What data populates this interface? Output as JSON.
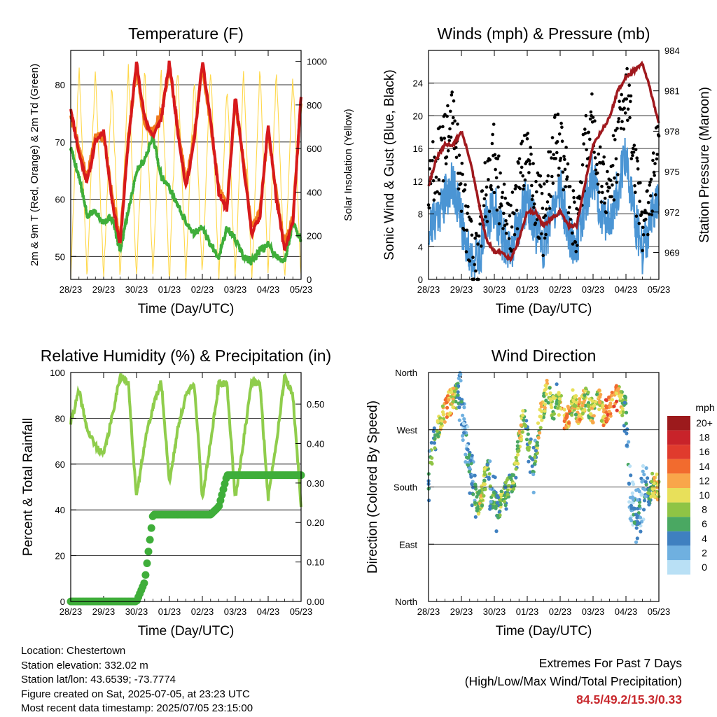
{
  "colors": {
    "temp_2m": "#d7191c",
    "temp_9m": "#f07b1e",
    "dewpoint": "#3fae3a",
    "solar": "#ffd84a",
    "wind": "#4b95d4",
    "gust": "#000000",
    "pressure": "#a0191e",
    "humidity": "#8fcd4c",
    "precip": "#3fae3a",
    "extremes": "#c8282d"
  },
  "x_ticks": [
    "28/23",
    "29/23",
    "30/23",
    "01/23",
    "02/23",
    "03/23",
    "04/23",
    "05/23"
  ],
  "chart_data": [
    {
      "type": "line",
      "title": "Temperature (F)",
      "xlabel": "Time (Day/UTC)",
      "ylabel": "2m & 9m T (Red, Orange) & 2m Td (Green)",
      "ylabel_right": "Solar Insolation (Yellow)",
      "ylim": [
        46,
        86
      ],
      "yticks": [
        50,
        60,
        70,
        80
      ],
      "ylim_right": [
        0,
        1050
      ],
      "yticks_right": [
        0,
        200,
        400,
        600,
        800,
        1000
      ],
      "x": [
        0,
        0.25,
        0.5,
        0.75,
        1,
        1.25,
        1.5,
        1.75,
        2,
        2.25,
        2.5,
        2.75,
        3,
        3.25,
        3.5,
        3.75,
        4,
        4.25,
        4.5,
        4.75,
        5,
        5.25,
        5.5,
        5.75,
        6,
        6.25,
        6.5,
        6.75,
        7
      ],
      "series": [
        {
          "values": [
            76,
            68,
            63,
            70,
            72,
            60,
            52,
            70,
            84,
            74,
            71,
            74,
            84,
            72,
            62,
            70,
            84,
            74,
            61,
            58,
            78,
            66,
            54,
            57,
            73,
            60,
            51,
            56,
            78
          ]
        },
        {
          "values": [
            75,
            69,
            64,
            71,
            71,
            61,
            53,
            71,
            83,
            73,
            72,
            75,
            83,
            73,
            63,
            71,
            83,
            73,
            62,
            59,
            77,
            67,
            55,
            58,
            72,
            61,
            52,
            57,
            77
          ]
        },
        {
          "values": [
            69,
            64,
            57,
            58,
            56,
            57,
            51,
            58,
            65,
            67,
            71,
            64,
            62,
            59,
            56,
            54,
            55,
            52,
            50,
            55,
            53,
            50,
            49,
            51,
            52,
            50,
            49,
            56,
            53
          ]
        },
        {
          "values": [
            0,
            980,
            0,
            980,
            0,
            900,
            0,
            980,
            0,
            960,
            0,
            980,
            0,
            990,
            0,
            940,
            0,
            980,
            0,
            900,
            0,
            960,
            0,
            990,
            0,
            970,
            0,
            950,
            0
          ]
        }
      ]
    },
    {
      "type": "line",
      "title": "Winds (mph) & Pressure (mb)",
      "xlabel": "Time (Day/UTC)",
      "ylabel": "Sonic Wind & Gust (Blue, Black)",
      "ylabel_right": "Station Pressure (Maroon)",
      "ylim": [
        0,
        28
      ],
      "yticks": [
        0,
        4,
        8,
        12,
        16,
        20,
        24
      ],
      "ylim_right": [
        967,
        984
      ],
      "yticks_right": [
        969,
        972,
        975,
        978,
        981,
        984
      ],
      "x": [
        0,
        0.25,
        0.5,
        0.75,
        1,
        1.25,
        1.5,
        1.75,
        2,
        2.25,
        2.5,
        2.75,
        3,
        3.25,
        3.5,
        3.75,
        4,
        4.25,
        4.5,
        4.75,
        5,
        5.25,
        5.5,
        5.75,
        6,
        6.25,
        6.5,
        6.75,
        7
      ],
      "series": [
        {
          "values": [
            6,
            8,
            10,
            12,
            7,
            3,
            2,
            7,
            9,
            5,
            3,
            7,
            10,
            6,
            4,
            8,
            11,
            6,
            4,
            9,
            13,
            8,
            7,
            11,
            15,
            8,
            3,
            7,
            10
          ]
        },
        {
          "values": [
            12,
            14,
            16,
            19,
            12,
            5,
            3,
            11,
            15,
            8,
            5,
            12,
            17,
            10,
            7,
            14,
            18,
            10,
            7,
            15,
            20,
            13,
            11,
            16,
            24,
            14,
            5,
            11,
            16
          ]
        },
        {
          "values": [
            974,
            976,
            977,
            977,
            978,
            976,
            973,
            970,
            969,
            969,
            968.5,
            970,
            972,
            972,
            971,
            971.5,
            972,
            971,
            971,
            974,
            977,
            978,
            979,
            981,
            982,
            982.5,
            983,
            981,
            978.5
          ]
        }
      ]
    },
    {
      "type": "line",
      "title": "Relative Humidity (%) & Precipitation (in)",
      "xlabel": "Time (Day/UTC)",
      "ylabel": "Percent & Total Rainfall",
      "ylim": [
        0,
        100
      ],
      "yticks": [
        0,
        20,
        40,
        60,
        80,
        100
      ],
      "ylim_right": [
        0,
        0.58
      ],
      "yticks_right": [
        "0.00",
        "0.10",
        "0.20",
        "0.30",
        "0.40",
        "0.50"
      ],
      "x": [
        0,
        0.25,
        0.5,
        0.75,
        1,
        1.25,
        1.5,
        1.75,
        2,
        2.25,
        2.5,
        2.75,
        3,
        3.25,
        3.5,
        3.75,
        4,
        4.25,
        4.5,
        4.75,
        5,
        5.25,
        5.5,
        5.75,
        6,
        6.25,
        6.5,
        6.75,
        7
      ],
      "series": [
        {
          "values": [
            78,
            92,
            75,
            68,
            64,
            80,
            99,
            95,
            45,
            70,
            85,
            96,
            52,
            75,
            90,
            96,
            45,
            70,
            95,
            95,
            45,
            70,
            96,
            95,
            45,
            70,
            98,
            90,
            42
          ]
        },
        {
          "values": [
            0,
            0,
            0,
            0,
            0,
            0,
            0,
            0,
            0,
            0.05,
            0.22,
            0.22,
            0.22,
            0.22,
            0.22,
            0.22,
            0.22,
            0.22,
            0.24,
            0.32,
            0.32,
            0.32,
            0.32,
            0.32,
            0.32,
            0.32,
            0.32,
            0.32,
            0.32
          ]
        }
      ]
    },
    {
      "type": "scatter",
      "title": "Wind Direction",
      "xlabel": "Time (Day/UTC)",
      "ylabel": "Direction (Colored By Speed)",
      "yticks": [
        "North",
        "East",
        "South",
        "West",
        "North"
      ],
      "ylim": [
        0,
        360
      ],
      "legend_title": "mph",
      "legend": [
        "20+",
        "18",
        "16",
        "14",
        "12",
        "10",
        "8",
        "6",
        "4",
        "2",
        "0"
      ],
      "legend_colors": [
        "#9c1a1c",
        "#c8232a",
        "#e03b2d",
        "#f26b2e",
        "#f9a64a",
        "#e8e05a",
        "#8fc445",
        "#4aa862",
        "#3f80c0",
        "#6fb0e0",
        "#b9e0f5"
      ],
      "x": [
        0,
        0.1,
        0.2,
        0.3,
        0.4,
        0.5,
        0.6,
        0.7,
        0.8,
        0.9,
        1,
        1.1,
        1.2,
        1.3,
        1.4,
        1.5,
        1.6,
        1.7,
        1.8,
        1.9,
        2,
        2.1,
        2.2,
        2.3,
        2.4,
        2.5,
        2.6,
        2.7,
        2.8,
        2.9,
        3,
        3.1,
        3.2,
        3.3,
        3.4,
        3.5,
        3.6,
        3.7,
        3.8,
        3.9,
        4,
        4.1,
        4.2,
        4.3,
        4.4,
        4.5,
        4.6,
        4.7,
        4.8,
        4.9,
        5,
        5.1,
        5.2,
        5.3,
        5.4,
        5.5,
        5.6,
        5.7,
        5.8,
        5.9,
        6,
        6.1,
        6.2,
        6.3,
        6.4,
        6.5,
        6.6,
        6.7,
        6.8,
        6.9,
        7
      ],
      "direction": [
        180,
        230,
        260,
        275,
        295,
        300,
        310,
        315,
        320,
        325,
        310,
        270,
        230,
        200,
        170,
        150,
        160,
        190,
        210,
        170,
        160,
        150,
        155,
        165,
        175,
        185,
        195,
        230,
        270,
        290,
        260,
        230,
        200,
        250,
        290,
        310,
        330,
        320,
        300,
        310,
        310,
        290,
        280,
        300,
        320,
        300,
        300,
        310,
        320,
        300,
        300,
        310,
        320,
        290,
        300,
        310,
        310,
        320,
        320,
        310,
        300,
        180,
        150,
        130,
        140,
        170,
        180,
        170,
        190,
        180,
        180
      ],
      "speed": [
        4,
        6,
        6,
        8,
        10,
        12,
        12,
        10,
        8,
        4,
        4,
        2,
        4,
        4,
        4,
        8,
        10,
        8,
        6,
        4,
        6,
        6,
        8,
        6,
        6,
        8,
        6,
        8,
        10,
        8,
        6,
        6,
        4,
        8,
        10,
        8,
        10,
        8,
        8,
        6,
        10,
        12,
        12,
        10,
        8,
        10,
        12,
        10,
        8,
        8,
        10,
        8,
        10,
        12,
        14,
        14,
        12,
        14,
        10,
        8,
        4,
        2,
        2,
        4,
        4,
        2,
        4,
        6,
        8,
        10,
        10
      ]
    }
  ],
  "info": {
    "location": "Location: Chestertown",
    "elevation": "Station elevation: 332.02 m",
    "latlon": "Station lat/lon: 43.6539; -73.7774",
    "created": "Figure created on Sat, 2025-07-05, at 23:23 UTC",
    "recent": "Most recent data timestamp: 2025/07/05 23:15:00"
  },
  "extremes": {
    "title": "Extremes For Past 7 Days",
    "subtitle": "(High/Low/Max Wind/Total Precipitation)",
    "values": "84.5/49.2/15.3/0.33"
  }
}
